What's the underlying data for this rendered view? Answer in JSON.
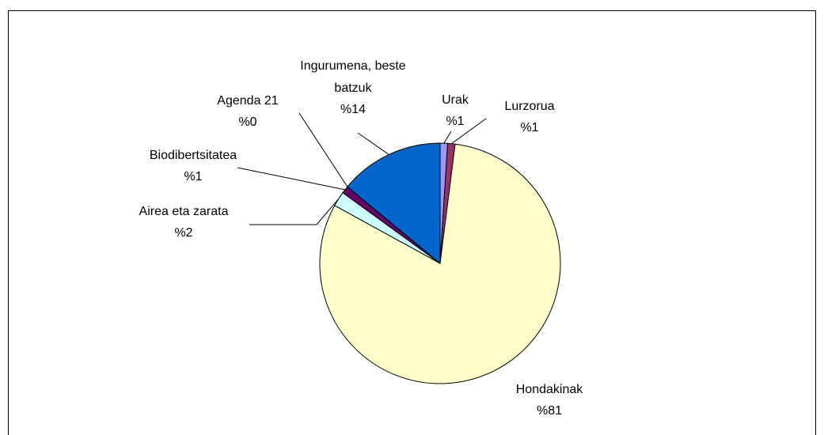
{
  "chart_data": {
    "type": "pie",
    "categories": [
      "Urak",
      "Lurzorua",
      "Hondakinak",
      "Airea eta zarata",
      "Biodibertsitatea",
      "Agenda 21",
      "Ingurumena, beste batzuk"
    ],
    "values": [
      1,
      1,
      81,
      2,
      1,
      0,
      14
    ],
    "value_labels": [
      "%1",
      "%1",
      "%81",
      "%2",
      "%1",
      "%0",
      "%14"
    ],
    "colors": [
      "#9999ff",
      "#993366",
      "#ffffcc",
      "#ccffff",
      "#660066",
      "#ff8080",
      "#0066cc"
    ]
  }
}
